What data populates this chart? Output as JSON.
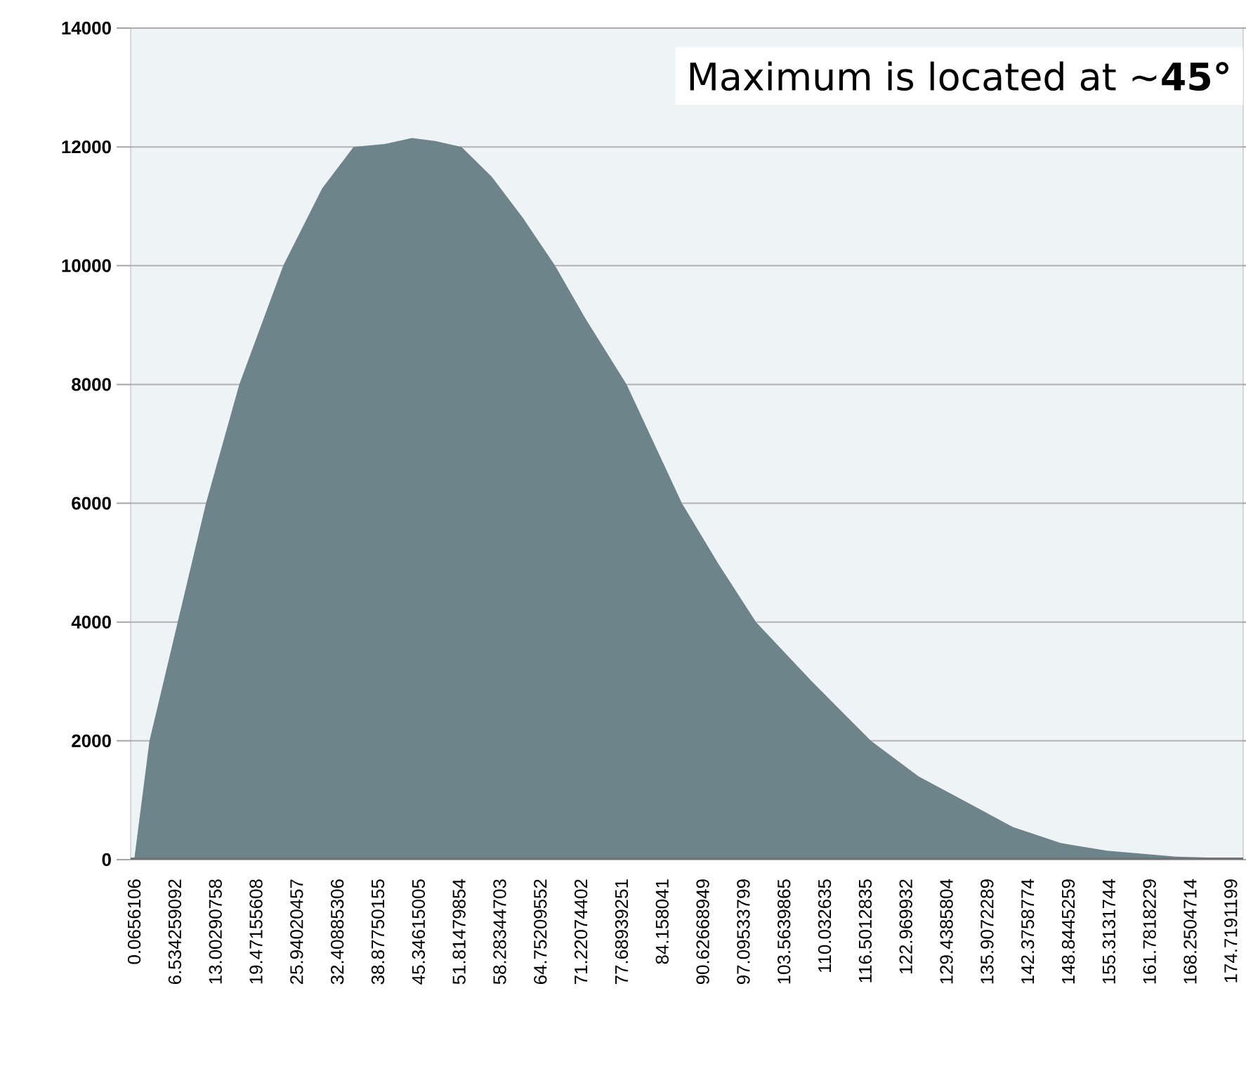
{
  "chart_data": {
    "type": "area",
    "color": "#6e848b",
    "grid": "y",
    "xlim": [
      -0.5,
      176.7
    ],
    "ylim": [
      0,
      14000
    ],
    "yticks": [
      0,
      2000,
      4000,
      6000,
      8000,
      10000,
      12000,
      14000
    ],
    "xticks": [
      {
        "value": 0.0656106,
        "label": "0.0656106"
      },
      {
        "value": 6.534259092,
        "label": "6.534259092"
      },
      {
        "value": 13.00290758,
        "label": "13.00290758"
      },
      {
        "value": 19.47155608,
        "label": "19.47155608"
      },
      {
        "value": 25.94020457,
        "label": "25.94020457"
      },
      {
        "value": 32.40885306,
        "label": "32.40885306"
      },
      {
        "value": 38.87750155,
        "label": "38.87750155"
      },
      {
        "value": 45.34615005,
        "label": "45.34615005"
      },
      {
        "value": 51.81479854,
        "label": "51.81479854"
      },
      {
        "value": 58.28344703,
        "label": "58.28344703"
      },
      {
        "value": 64.75209552,
        "label": "64.75209552"
      },
      {
        "value": 71.22074402,
        "label": "71.22074402"
      },
      {
        "value": 77.68939251,
        "label": "77.68939251"
      },
      {
        "value": 84.158041,
        "label": "84.158041"
      },
      {
        "value": 90.62668949,
        "label": "90.62668949"
      },
      {
        "value": 97.09533799,
        "label": "97.09533799"
      },
      {
        "value": 103.5639865,
        "label": "103.5639865"
      },
      {
        "value": 110.032635,
        "label": "110.032635"
      },
      {
        "value": 116.5012835,
        "label": "116.5012835"
      },
      {
        "value": 122.969932,
        "label": "122.969932"
      },
      {
        "value": 129.4385804,
        "label": "129.4385804"
      },
      {
        "value": 135.9072289,
        "label": "135.9072289"
      },
      {
        "value": 142.3758774,
        "label": "142.3758774"
      },
      {
        "value": 148.8445259,
        "label": "148.8445259"
      },
      {
        "value": 155.3131744,
        "label": "155.3131744"
      },
      {
        "value": 161.7818229,
        "label": "161.7818229"
      },
      {
        "value": 168.2504714,
        "label": "168.2504714"
      },
      {
        "value": 174.7191199,
        "label": "174.7191199"
      }
    ],
    "x": [
      0.07,
      2.5,
      7,
      11.5,
      16.8,
      23.8,
      30,
      35,
      40,
      44.3,
      48,
      52.2,
      57,
      62,
      67.1,
      72,
      78.5,
      87.3,
      93,
      99.1,
      108,
      117.4,
      125,
      133,
      140,
      147.6,
      155,
      166,
      176
    ],
    "values": [
      0,
      2000,
      4000,
      6000,
      8000,
      10000,
      11300,
      12000,
      12050,
      12150,
      12100,
      12000,
      11500,
      10800,
      10000,
      9100,
      8000,
      6000,
      5000,
      4000,
      3000,
      2000,
      1400,
      950,
      550,
      280,
      150,
      50,
      20
    ],
    "annotations": [
      "Maximum is located at ~**45°**"
    ]
  }
}
